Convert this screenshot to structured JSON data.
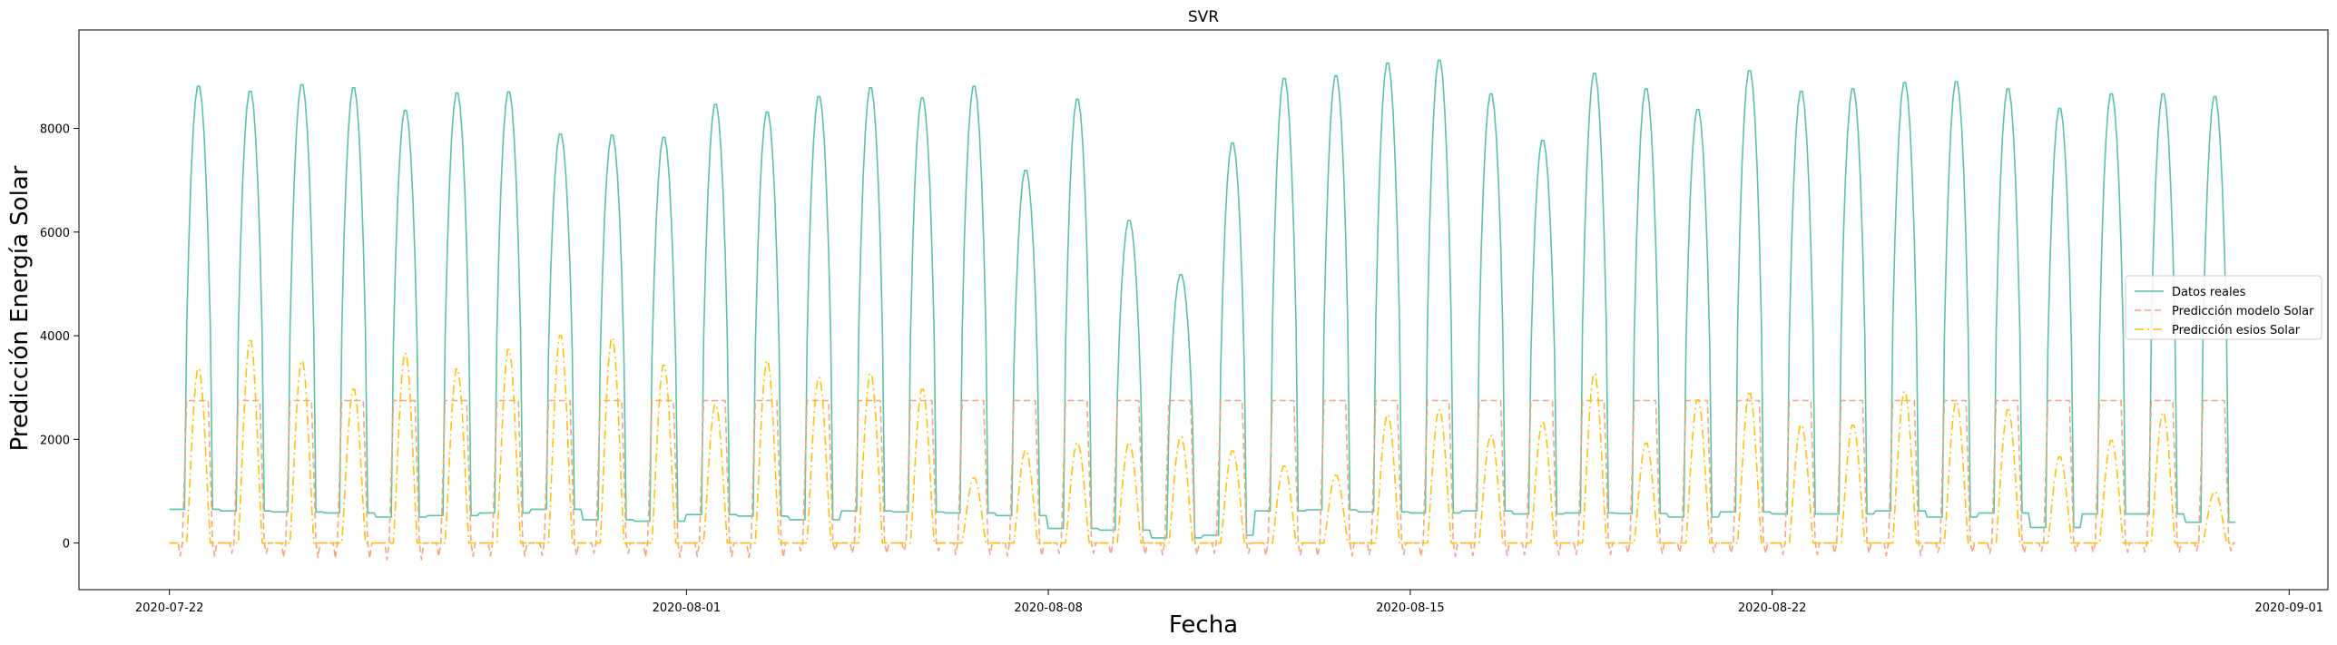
{
  "chart_data": {
    "type": "line",
    "title": "SVR",
    "xlabel": "Fecha",
    "ylabel": "Predicción Energía Solar",
    "x_axis": {
      "kind": "date",
      "range": [
        "2020-07-20T06:00",
        "2020-09-01T18:00"
      ],
      "ticks": [
        "2020-07-22",
        "2020-08-01",
        "2020-08-08",
        "2020-08-15",
        "2020-08-22",
        "2020-09-01"
      ]
    },
    "y_axis": {
      "range": [
        -900,
        9900
      ],
      "ticks": [
        0,
        2000,
        4000,
        6000,
        8000
      ]
    },
    "grid": false,
    "legend_position": "center-right",
    "data_start_date": "2020-07-22",
    "series": [
      {
        "name": "Datos reales",
        "color": "#5ac4a0",
        "style": "solid",
        "daily_peaks": [
          8850,
          8750,
          8880,
          8820,
          8380,
          8720,
          8740,
          7920,
          7900,
          7860,
          8500,
          8350,
          8650,
          8820,
          8620,
          8850,
          7220,
          8600,
          6250,
          5200,
          7750,
          9000,
          9050,
          9300,
          9350,
          8700,
          7800,
          9100,
          8800,
          8400,
          9150,
          8750,
          8800,
          8920,
          8940,
          8800,
          8420,
          8700,
          8700,
          8650
        ],
        "daily_night": [
          650,
          620,
          600,
          580,
          500,
          530,
          580,
          650,
          450,
          420,
          550,
          520,
          450,
          620,
          600,
          580,
          530,
          280,
          250,
          100,
          150,
          620,
          640,
          600,
          580,
          620,
          560,
          580,
          570,
          500,
          600,
          560,
          560,
          620,
          500,
          580,
          300,
          560,
          560,
          400
        ]
      },
      {
        "name": "Predicción modelo Solar",
        "color": "#f4a582",
        "style": "dashed",
        "daily_peaks": [
          2750,
          2750,
          2750,
          2750,
          2750,
          2750,
          2750,
          2750,
          2750,
          2750,
          2750,
          2750,
          2750,
          2750,
          2750,
          2750,
          2750,
          2750,
          2750,
          2750,
          2750,
          2750,
          2750,
          2750,
          2750,
          2750,
          2750,
          2750,
          2750,
          2750,
          2750,
          2750,
          2750,
          2750,
          2750,
          2750,
          2750,
          2750,
          2750,
          2750
        ],
        "daily_min": [
          -250,
          -200,
          -280,
          -300,
          -320,
          -260,
          -250,
          -240,
          -200,
          -270,
          -260,
          -280,
          -150,
          -200,
          -150,
          -220,
          -250,
          -200,
          -220,
          -230,
          -200,
          -240,
          -250,
          -220,
          -260,
          -240,
          -230,
          -220,
          -200,
          -180,
          -200,
          -220,
          -200,
          -240,
          -180,
          -200,
          -160,
          -180,
          -170,
          -150
        ]
      },
      {
        "name": "Predicción esios Solar",
        "color": "#ffc107",
        "style": "dashdot",
        "daily_peaks": [
          3400,
          3950,
          3550,
          3000,
          3700,
          3400,
          3780,
          4050,
          4000,
          3470,
          2700,
          3550,
          3230,
          3300,
          3000,
          1270,
          1800,
          1950,
          1950,
          2070,
          1800,
          1500,
          1320,
          2500,
          2600,
          2100,
          2350,
          3300,
          1950,
          2790,
          2920,
          2300,
          2300,
          2950,
          2750,
          2600,
          1680,
          2000,
          2540,
          1000
        ]
      }
    ]
  }
}
